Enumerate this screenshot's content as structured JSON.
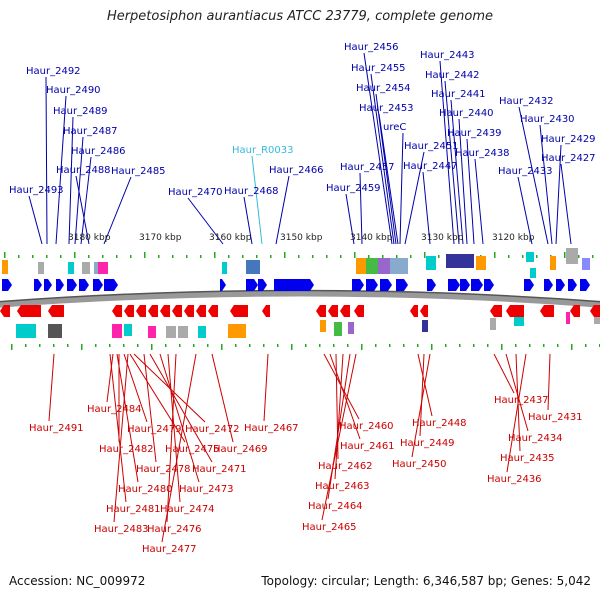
{
  "title": "Herpetosiphon aurantiacus ATCC 23779, complete genome",
  "footer": {
    "accession": "Accession: NC_009972",
    "summary": "Topology: circular; Length: 6,346,587 bp; Genes: 5,042"
  },
  "scale_labels": [
    "3180 kbp",
    "3170 kbp",
    "3160 kbp",
    "3150 kbp",
    "3140 kbp",
    "3130 kbp",
    "3120 kbp"
  ],
  "colors": {
    "forward_gene": "#0000ee",
    "reverse_gene": "#ee0000",
    "forward_label": "#0000aa",
    "reverse_label": "#cc0000",
    "rna_label": "#33bbdd",
    "backbone": "#888888",
    "tick": "#22aa22"
  },
  "top_labels": [
    "Haur_2492",
    "Haur_2490",
    "Haur_2489",
    "Haur_2487",
    "Haur_2486",
    "Haur_2488",
    "Haur_2485",
    "Haur_2493",
    "Haur_2470",
    "Haur_R0033",
    "Haur_2468",
    "Haur_2466",
    "Haur_2456",
    "Haur_2455",
    "Haur_2454",
    "Haur_2453",
    "ureC",
    "Haur_2451",
    "Haur_2457",
    "Haur_2459",
    "Haur_2447",
    "Haur_2443",
    "Haur_2442",
    "Haur_2441",
    "Haur_2440",
    "Haur_2439",
    "Haur_2438",
    "Haur_2432",
    "Haur_2430",
    "Haur_2429",
    "Haur_2427",
    "Haur_2433"
  ],
  "bottom_labels": [
    "Haur_2491",
    "Haur_2484",
    "Haur_2482",
    "Haur_2479",
    "Haur_2475",
    "Haur_2472",
    "Haur_2469",
    "Haur_2467",
    "Haur_2478",
    "Haur_2471",
    "Haur_2480",
    "Haur_2473",
    "Haur_2481",
    "Haur_2474",
    "Haur_2483",
    "Haur_2476",
    "Haur_2477",
    "Haur_2460",
    "Haur_2461",
    "Haur_2462",
    "Haur_2463",
    "Haur_2464",
    "Haur_2465",
    "Haur_2448",
    "Haur_2449",
    "Haur_2450",
    "Haur_2437",
    "Haur_2431",
    "Haur_2434",
    "Haur_2435",
    "Haur_2436"
  ]
}
